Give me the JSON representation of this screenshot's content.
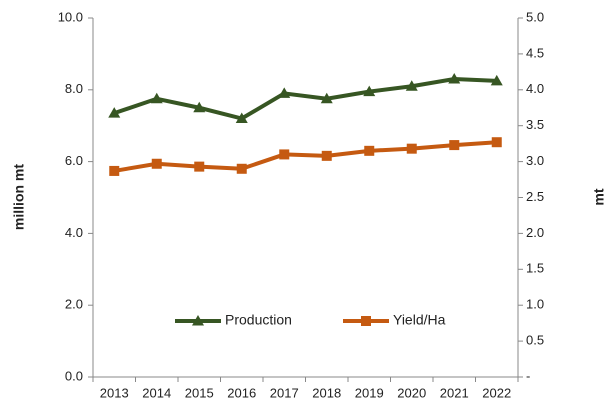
{
  "chart_data": {
    "type": "line",
    "categories": [
      "2013",
      "2014",
      "2015",
      "2016",
      "2017",
      "2018",
      "2019",
      "2020",
      "2021",
      "2022"
    ],
    "series": [
      {
        "name": "Production",
        "color": "#375623",
        "marker": "triangle",
        "values": [
          7.35,
          7.75,
          7.5,
          7.2,
          7.9,
          7.75,
          7.95,
          8.1,
          8.3,
          8.25
        ]
      },
      {
        "name": "Yield/Ha",
        "color": "#c55a11",
        "marker": "square",
        "axis": "y2",
        "values": [
          2.87,
          2.97,
          2.93,
          2.9,
          3.1,
          3.08,
          3.15,
          3.18,
          3.23,
          3.27
        ]
      }
    ],
    "ylabel": "million mt",
    "y2label": "mt",
    "ylim": [
      0,
      10
    ],
    "yticks": [
      {
        "value": 0,
        "label": "0.0"
      },
      {
        "value": 2,
        "label": "2.0"
      },
      {
        "value": 4,
        "label": "4.0"
      },
      {
        "value": 6,
        "label": "6.0"
      },
      {
        "value": 8,
        "label": "8.0"
      },
      {
        "value": 10,
        "label": "10.0"
      }
    ],
    "y2lim": [
      0,
      5
    ],
    "y2ticks": [
      {
        "value": 0,
        "label": "-"
      },
      0.5,
      {
        "value": 1,
        "label": "1.0"
      },
      1.5,
      {
        "value": 2,
        "label": "2.0"
      },
      2.5,
      {
        "value": 3,
        "label": "3.0"
      },
      3.5,
      {
        "value": 4,
        "label": "4.0"
      },
      4.5,
      {
        "value": 5,
        "label": "5.0"
      }
    ]
  }
}
